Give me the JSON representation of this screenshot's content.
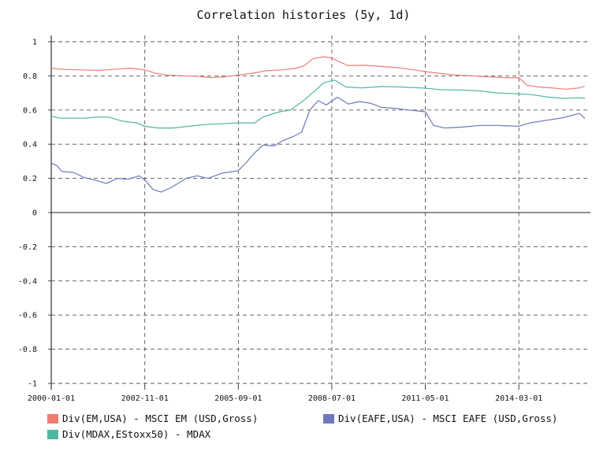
{
  "chart_data": {
    "type": "line",
    "title": "Correlation histories (5y, 1d)",
    "xlabel": "",
    "ylabel": "",
    "ylim": [
      -1,
      1
    ],
    "yticks": [
      1,
      0.8,
      0.6,
      0.4,
      0.2,
      0,
      -0.2,
      -0.4,
      -0.6,
      -0.8,
      -1
    ],
    "ytick_labels": [
      "1",
      "0.8",
      "0.6",
      "0.4",
      "0.2",
      "0",
      "-0.2",
      "-0.4",
      "-0.6",
      "-0.8",
      "-1"
    ],
    "xlim": [
      "2000-01-01",
      "2016-05-01"
    ],
    "xticks": [
      "2000-01-01",
      "2002-11-01",
      "2005-09-01",
      "2008-07-01",
      "2011-05-01",
      "2014-03-01"
    ],
    "grid": true,
    "legend_position": "bottom",
    "series": [
      {
        "name": "Div(EM,USA) - MSCI EM (USD,Gross)",
        "color": "#f07c74",
        "points": [
          [
            "2000-01-01",
            0.845
          ],
          [
            "2000-06-01",
            0.838
          ],
          [
            "2001-01-01",
            0.835
          ],
          [
            "2001-06-01",
            0.832
          ],
          [
            "2002-01-01",
            0.84
          ],
          [
            "2002-06-01",
            0.845
          ],
          [
            "2002-11-01",
            0.835
          ],
          [
            "2003-03-01",
            0.815
          ],
          [
            "2003-07-01",
            0.805
          ],
          [
            "2004-01-01",
            0.8
          ],
          [
            "2004-06-01",
            0.798
          ],
          [
            "2004-11-01",
            0.79
          ],
          [
            "2005-04-01",
            0.795
          ],
          [
            "2005-09-01",
            0.805
          ],
          [
            "2006-02-01",
            0.815
          ],
          [
            "2006-07-01",
            0.83
          ],
          [
            "2007-01-01",
            0.835
          ],
          [
            "2007-06-01",
            0.845
          ],
          [
            "2007-09-01",
            0.86
          ],
          [
            "2007-12-01",
            0.9
          ],
          [
            "2008-04-01",
            0.912
          ],
          [
            "2008-07-01",
            0.905
          ],
          [
            "2008-10-01",
            0.88
          ],
          [
            "2009-01-01",
            0.86
          ],
          [
            "2009-07-01",
            0.862
          ],
          [
            "2010-01-01",
            0.855
          ],
          [
            "2010-07-01",
            0.848
          ],
          [
            "2011-01-01",
            0.835
          ],
          [
            "2011-05-01",
            0.825
          ],
          [
            "2011-10-01",
            0.815
          ],
          [
            "2012-04-01",
            0.805
          ],
          [
            "2012-10-01",
            0.8
          ],
          [
            "2013-04-01",
            0.795
          ],
          [
            "2013-10-01",
            0.79
          ],
          [
            "2014-03-01",
            0.79
          ],
          [
            "2014-06-01",
            0.745
          ],
          [
            "2014-10-01",
            0.735
          ],
          [
            "2015-03-01",
            0.73
          ],
          [
            "2015-08-01",
            0.722
          ],
          [
            "2016-01-01",
            0.73
          ],
          [
            "2016-03-01",
            0.74
          ]
        ]
      },
      {
        "name": "Div(MDAX,EStoxx50) - MDAX",
        "color": "#4fb6a3",
        "points": [
          [
            "2000-01-01",
            0.565
          ],
          [
            "2000-04-01",
            0.553
          ],
          [
            "2001-01-01",
            0.552
          ],
          [
            "2001-06-01",
            0.56
          ],
          [
            "2001-10-01",
            0.558
          ],
          [
            "2002-03-01",
            0.535
          ],
          [
            "2002-08-01",
            0.525
          ],
          [
            "2002-11-01",
            0.505
          ],
          [
            "2003-04-01",
            0.495
          ],
          [
            "2003-09-01",
            0.495
          ],
          [
            "2004-03-01",
            0.505
          ],
          [
            "2004-09-01",
            0.515
          ],
          [
            "2005-03-01",
            0.52
          ],
          [
            "2005-09-01",
            0.525
          ],
          [
            "2006-03-01",
            0.525
          ],
          [
            "2006-06-01",
            0.56
          ],
          [
            "2006-12-01",
            0.59
          ],
          [
            "2007-04-01",
            0.6
          ],
          [
            "2007-09-01",
            0.66
          ],
          [
            "2008-01-01",
            0.715
          ],
          [
            "2008-04-01",
            0.76
          ],
          [
            "2008-08-01",
            0.775
          ],
          [
            "2008-12-01",
            0.735
          ],
          [
            "2009-06-01",
            0.73
          ],
          [
            "2010-01-01",
            0.738
          ],
          [
            "2010-08-01",
            0.735
          ],
          [
            "2011-05-01",
            0.728
          ],
          [
            "2011-10-01",
            0.72
          ],
          [
            "2012-06-01",
            0.717
          ],
          [
            "2013-01-01",
            0.712
          ],
          [
            "2013-07-01",
            0.7
          ],
          [
            "2014-03-01",
            0.695
          ],
          [
            "2014-08-01",
            0.69
          ],
          [
            "2015-01-01",
            0.677
          ],
          [
            "2015-07-01",
            0.668
          ],
          [
            "2016-01-01",
            0.672
          ],
          [
            "2016-03-01",
            0.668
          ]
        ]
      },
      {
        "name": "Div(EAFE,USA) - MSCI EAFE (USD,Gross)",
        "color": "#6c78c0",
        "points": [
          [
            "2000-01-01",
            0.29
          ],
          [
            "2000-03-01",
            0.275
          ],
          [
            "2000-05-01",
            0.24
          ],
          [
            "2000-09-01",
            0.235
          ],
          [
            "2001-01-01",
            0.205
          ],
          [
            "2001-05-01",
            0.19
          ],
          [
            "2001-09-01",
            0.17
          ],
          [
            "2002-01-01",
            0.2
          ],
          [
            "2002-05-01",
            0.195
          ],
          [
            "2002-09-01",
            0.215
          ],
          [
            "2002-11-01",
            0.19
          ],
          [
            "2003-02-01",
            0.135
          ],
          [
            "2003-05-01",
            0.12
          ],
          [
            "2003-09-01",
            0.15
          ],
          [
            "2004-02-01",
            0.2
          ],
          [
            "2004-06-01",
            0.215
          ],
          [
            "2004-10-01",
            0.2
          ],
          [
            "2005-03-01",
            0.23
          ],
          [
            "2005-09-01",
            0.245
          ],
          [
            "2005-12-01",
            0.295
          ],
          [
            "2006-03-01",
            0.35
          ],
          [
            "2006-06-01",
            0.395
          ],
          [
            "2006-10-01",
            0.39
          ],
          [
            "2007-01-01",
            0.42
          ],
          [
            "2007-05-01",
            0.445
          ],
          [
            "2007-08-01",
            0.47
          ],
          [
            "2007-11-01",
            0.6
          ],
          [
            "2008-02-01",
            0.655
          ],
          [
            "2008-05-01",
            0.63
          ],
          [
            "2008-09-01",
            0.675
          ],
          [
            "2009-01-01",
            0.635
          ],
          [
            "2009-05-01",
            0.65
          ],
          [
            "2009-09-01",
            0.64
          ],
          [
            "2010-01-01",
            0.615
          ],
          [
            "2010-06-01",
            0.61
          ],
          [
            "2010-11-01",
            0.6
          ],
          [
            "2011-05-01",
            0.59
          ],
          [
            "2011-08-01",
            0.51
          ],
          [
            "2011-12-01",
            0.495
          ],
          [
            "2012-06-01",
            0.5
          ],
          [
            "2013-01-01",
            0.51
          ],
          [
            "2013-07-01",
            0.51
          ],
          [
            "2014-03-01",
            0.505
          ],
          [
            "2014-07-01",
            0.525
          ],
          [
            "2015-01-01",
            0.54
          ],
          [
            "2015-07-01",
            0.555
          ],
          [
            "2016-01-01",
            0.58
          ],
          [
            "2016-03-01",
            0.55
          ]
        ]
      }
    ]
  }
}
